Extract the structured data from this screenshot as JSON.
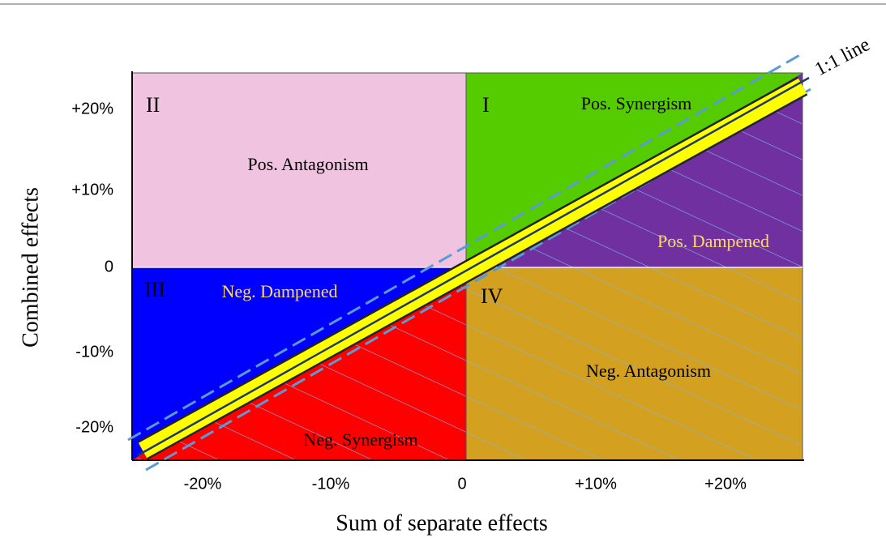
{
  "axes": {
    "y_title": "Combined effects",
    "x_title": "Sum of separate effects",
    "y_ticks": [
      "+20%",
      "+10%",
      "0",
      "-10%",
      "-20%"
    ],
    "x_ticks": [
      "-20%",
      "-10%",
      "0",
      "+10%",
      "+20%"
    ]
  },
  "quadrants": [
    {
      "numeral": "I",
      "label": "Pos. Synergism",
      "dampened": "Pos. Dampened"
    },
    {
      "numeral": "II",
      "label": "Pos. Antagonism"
    },
    {
      "numeral": "III",
      "label": "Neg. Synergism",
      "dampened": "Neg. Dampened"
    },
    {
      "numeral": "IV",
      "label": "Neg. Antagonism"
    }
  ],
  "line_label": "1:1 line"
}
